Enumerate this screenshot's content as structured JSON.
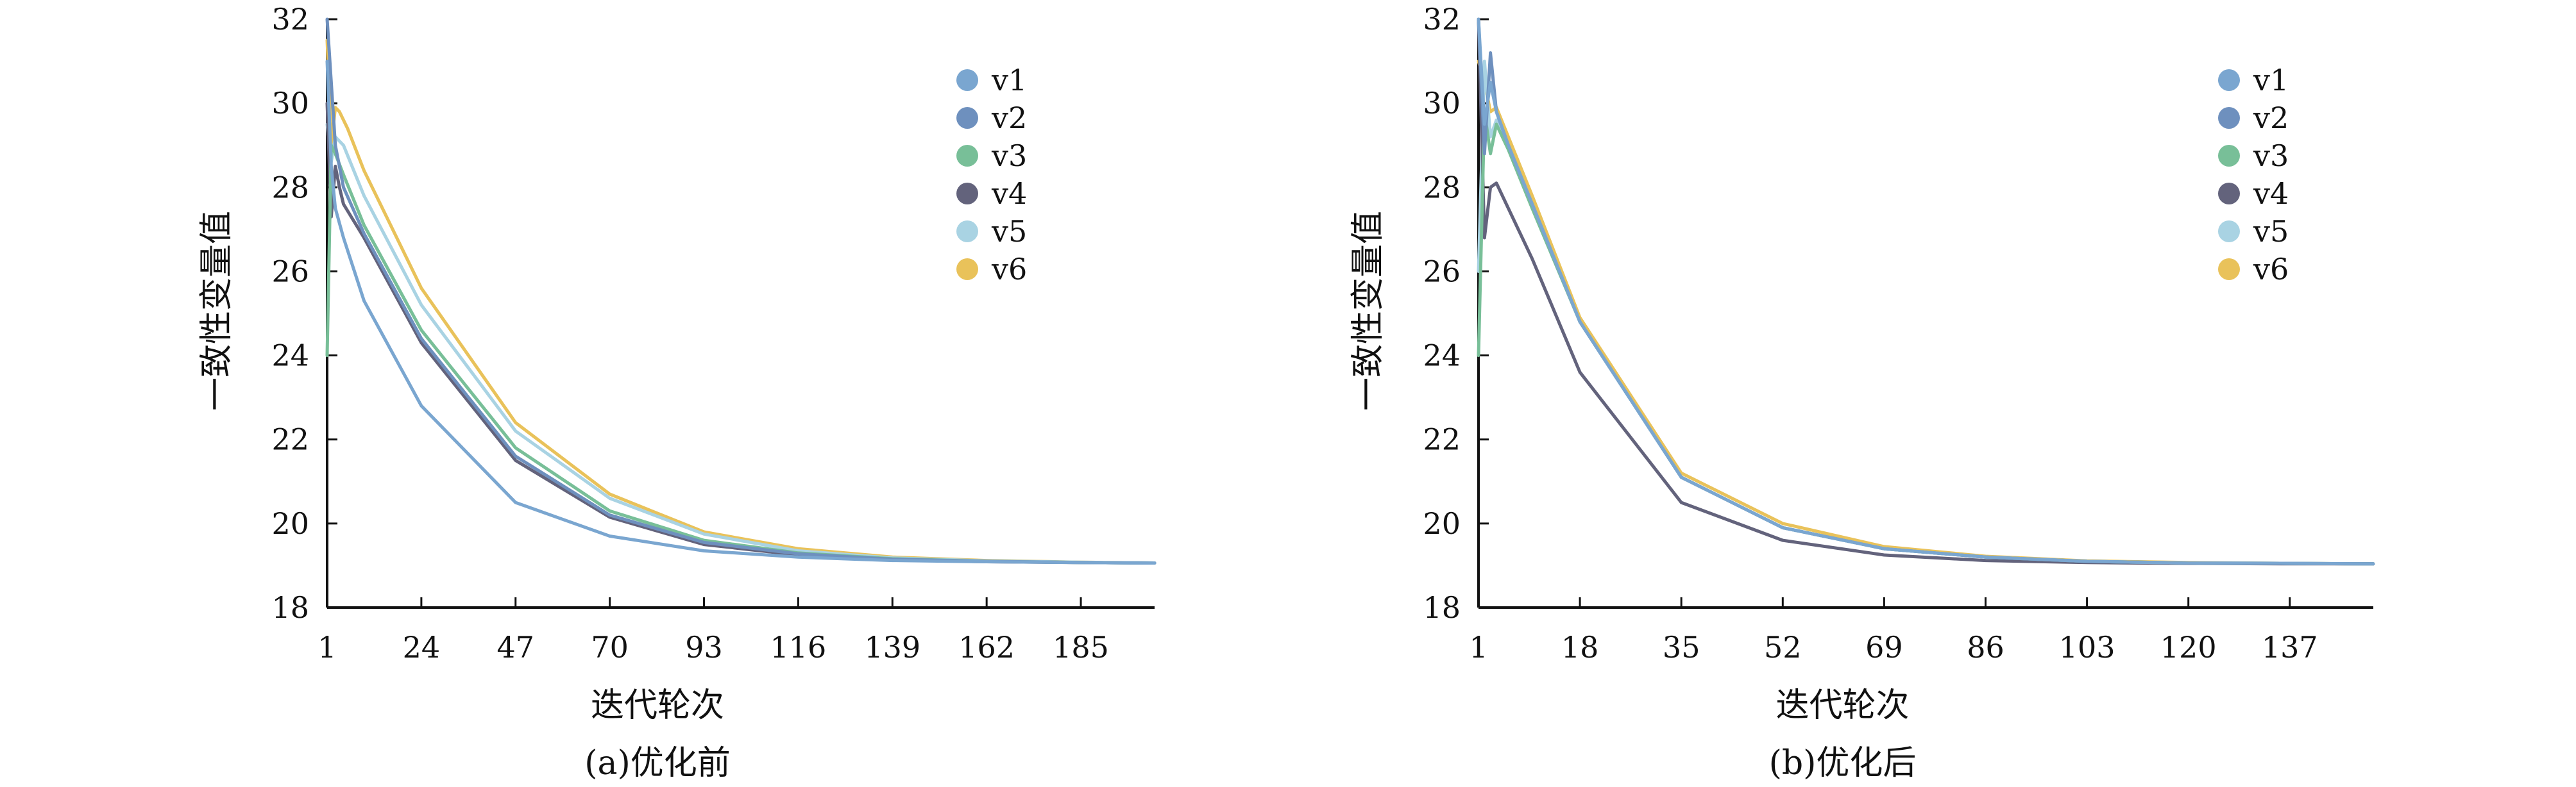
{
  "colors": {
    "v1": "#7aa6d0",
    "v2": "#6e90be",
    "v3": "#78bf98",
    "v4": "#63637c",
    "v5": "#a9d3e3",
    "v6": "#e9c25a"
  },
  "chart_data": [
    {
      "type": "line",
      "caption": "(a)优化前",
      "xlabel": "迭代轮次",
      "ylabel": "一致性变量值",
      "xlim": [
        1,
        203
      ],
      "ylim": [
        18,
        32
      ],
      "xticks": [
        1,
        24,
        47,
        70,
        93,
        116,
        139,
        162,
        185
      ],
      "xtick_labels": [
        "1",
        "24",
        "47",
        "70",
        "93",
        "116",
        "139",
        "162",
        "185"
      ],
      "yticks": [
        18,
        20,
        22,
        24,
        26,
        28,
        30,
        32
      ],
      "ytick_labels": [
        "18",
        "20",
        "22",
        "24",
        "26",
        "28",
        "30",
        "32"
      ],
      "legend_position": "top-right",
      "series": [
        {
          "name": "v1",
          "x": [
            1,
            2,
            3,
            5,
            10,
            24,
            47,
            70,
            93,
            116,
            139,
            162,
            185,
            203
          ],
          "y": [
            31.0,
            28.5,
            27.5,
            26.8,
            25.3,
            22.8,
            20.5,
            19.7,
            19.35,
            19.2,
            19.12,
            19.09,
            19.07,
            19.06
          ]
        },
        {
          "name": "v2",
          "x": [
            1,
            2,
            3,
            5,
            10,
            24,
            47,
            70,
            93,
            116,
            139,
            162,
            185,
            203
          ],
          "y": [
            32.0,
            30.5,
            29.0,
            28.0,
            26.9,
            24.4,
            21.6,
            20.2,
            19.55,
            19.28,
            19.15,
            19.1,
            19.07,
            19.06
          ]
        },
        {
          "name": "v3",
          "x": [
            1,
            2,
            3,
            5,
            10,
            24,
            47,
            70,
            93,
            116,
            139,
            162,
            185,
            203
          ],
          "y": [
            24.0,
            29.0,
            28.8,
            28.3,
            27.1,
            24.6,
            21.8,
            20.3,
            19.6,
            19.3,
            19.16,
            19.1,
            19.07,
            19.06
          ]
        },
        {
          "name": "v4",
          "x": [
            1,
            2,
            3,
            4,
            5,
            10,
            24,
            47,
            70,
            93,
            116,
            139,
            162,
            185,
            203
          ],
          "y": [
            30.0,
            27.3,
            28.5,
            28.0,
            27.6,
            26.8,
            24.3,
            21.5,
            20.15,
            19.5,
            19.25,
            19.14,
            19.09,
            19.07,
            19.06
          ]
        },
        {
          "name": "v5",
          "x": [
            1,
            2,
            3,
            5,
            10,
            24,
            47,
            70,
            93,
            116,
            139,
            162,
            185,
            203
          ],
          "y": [
            29.5,
            28.6,
            29.2,
            29.0,
            27.8,
            25.2,
            22.2,
            20.6,
            19.75,
            19.35,
            19.18,
            19.11,
            19.08,
            19.06
          ]
        },
        {
          "name": "v6",
          "x": [
            1,
            2,
            3,
            4,
            6,
            10,
            24,
            47,
            70,
            93,
            116,
            139,
            162,
            185,
            203
          ],
          "y": [
            31.5,
            29.0,
            29.9,
            29.8,
            29.4,
            28.4,
            25.6,
            22.4,
            20.7,
            19.8,
            19.4,
            19.2,
            19.12,
            19.08,
            19.06
          ]
        }
      ]
    },
    {
      "type": "line",
      "caption": "(b)优化后",
      "xlabel": "迭代轮次",
      "ylabel": "一致性变量值",
      "xlim": [
        1,
        151
      ],
      "ylim": [
        18,
        32
      ],
      "xticks": [
        1,
        18,
        35,
        52,
        69,
        86,
        103,
        120,
        137
      ],
      "xtick_labels": [
        "1",
        "18",
        "35",
        "52",
        "69",
        "86",
        "103",
        "120",
        "137"
      ],
      "yticks": [
        18,
        20,
        22,
        24,
        26,
        28,
        30,
        32
      ],
      "ytick_labels": [
        "18",
        "20",
        "22",
        "24",
        "26",
        "28",
        "30",
        "32"
      ],
      "legend_position": "top-right",
      "series": [
        {
          "name": "v1",
          "x": [
            1,
            2,
            3,
            4,
            6,
            10,
            18,
            35,
            52,
            69,
            86,
            103,
            120,
            137,
            151
          ],
          "y": [
            32.0,
            29.5,
            30.5,
            29.8,
            29.0,
            27.6,
            24.8,
            21.1,
            19.9,
            19.4,
            19.2,
            19.1,
            19.06,
            19.05,
            19.04
          ]
        },
        {
          "name": "v2",
          "x": [
            1,
            2,
            3,
            4,
            6,
            10,
            18,
            35,
            52,
            69,
            86,
            103,
            120,
            137,
            151
          ],
          "y": [
            32.0,
            28.8,
            31.2,
            29.8,
            29.0,
            27.6,
            24.8,
            21.1,
            19.9,
            19.4,
            19.2,
            19.1,
            19.06,
            19.05,
            19.04
          ]
        },
        {
          "name": "v3",
          "x": [
            1,
            2,
            3,
            4,
            6,
            10,
            18,
            35,
            52,
            69,
            86,
            103,
            120,
            137,
            151
          ],
          "y": [
            24.0,
            29.8,
            28.8,
            29.5,
            28.9,
            27.5,
            24.8,
            21.1,
            19.9,
            19.4,
            19.2,
            19.1,
            19.06,
            19.05,
            19.04
          ]
        },
        {
          "name": "v4",
          "x": [
            1,
            2,
            3,
            4,
            6,
            10,
            18,
            35,
            52,
            69,
            86,
            103,
            120,
            137,
            151
          ],
          "y": [
            32.0,
            26.8,
            28.0,
            28.1,
            27.5,
            26.3,
            23.6,
            20.5,
            19.6,
            19.25,
            19.12,
            19.07,
            19.05,
            19.04,
            19.04
          ]
        },
        {
          "name": "v5",
          "x": [
            1,
            2,
            3,
            4,
            6,
            10,
            18,
            35,
            52,
            69,
            86,
            103,
            120,
            137,
            151
          ],
          "y": [
            26.0,
            31.0,
            29.2,
            29.6,
            29.0,
            27.6,
            24.8,
            21.1,
            19.9,
            19.4,
            19.2,
            19.1,
            19.06,
            19.05,
            19.04
          ]
        },
        {
          "name": "v6",
          "x": [
            1,
            2,
            3,
            4,
            6,
            10,
            18,
            35,
            52,
            69,
            86,
            103,
            120,
            137,
            151
          ],
          "y": [
            31.0,
            30.5,
            29.8,
            29.9,
            29.2,
            27.8,
            24.9,
            21.2,
            20.0,
            19.45,
            19.22,
            19.11,
            19.07,
            19.05,
            19.04
          ]
        }
      ]
    }
  ]
}
